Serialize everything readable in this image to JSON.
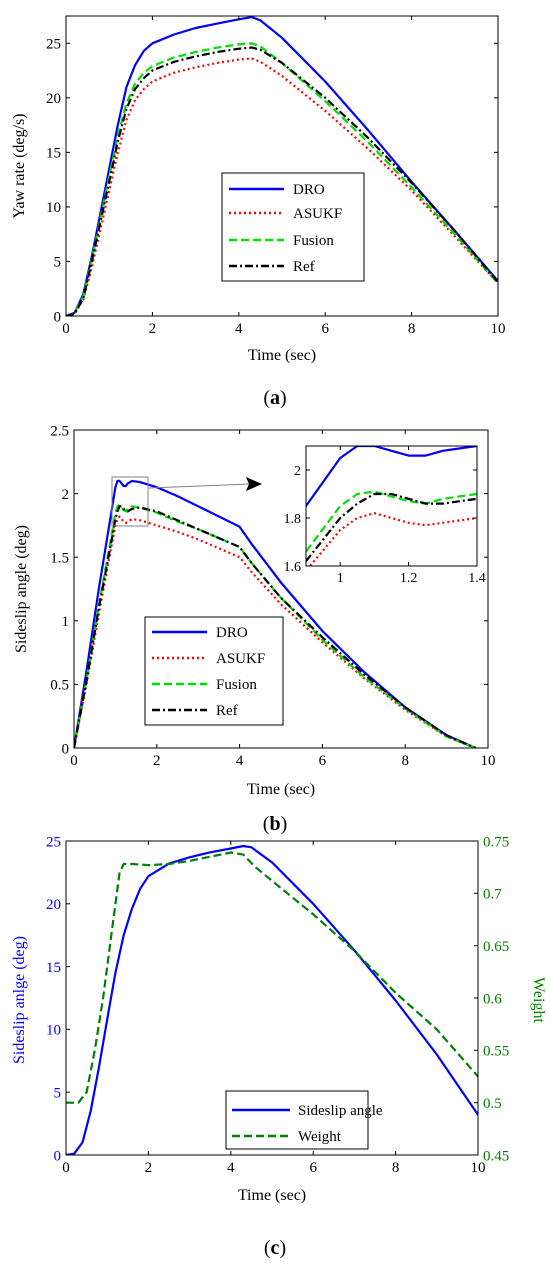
{
  "chart_data": [
    {
      "type": "line",
      "panel_caption": "a",
      "xlabel": "Time (sec)",
      "ylabel": "Yaw rate (deg/s)",
      "xlim": [
        0,
        10
      ],
      "ylim": [
        0,
        27.5
      ],
      "xticks": [
        0,
        2,
        4,
        6,
        8,
        10
      ],
      "yticks": [
        0,
        5,
        10,
        15,
        20,
        25
      ],
      "legend_position": "center",
      "series": [
        {
          "name": "DRO",
          "color": "#0000ff",
          "style": "solid",
          "x": [
            0,
            0.2,
            0.4,
            0.6,
            0.8,
            1.0,
            1.2,
            1.4,
            1.6,
            1.8,
            2.0,
            2.5,
            3.0,
            3.5,
            4.0,
            4.3,
            4.5,
            5,
            6,
            7,
            8,
            9,
            10
          ],
          "y": [
            0,
            0.3,
            2.0,
            5.5,
            9.5,
            13.5,
            17.5,
            21.0,
            23.0,
            24.3,
            25.0,
            25.8,
            26.4,
            26.8,
            27.2,
            27.4,
            27.1,
            25.5,
            21.5,
            17.0,
            12.3,
            7.8,
            3.2
          ]
        },
        {
          "name": "ASUKF",
          "color": "#ff0000",
          "style": "dotted",
          "x": [
            0,
            0.2,
            0.4,
            0.6,
            0.8,
            1.0,
            1.2,
            1.4,
            1.6,
            1.8,
            2.0,
            2.5,
            3.0,
            3.5,
            4.0,
            4.3,
            4.5,
            5,
            6,
            7,
            8,
            9,
            10
          ],
          "y": [
            0,
            0.2,
            1.5,
            4.5,
            8.0,
            11.5,
            15.0,
            18.0,
            19.8,
            20.8,
            21.5,
            22.3,
            22.8,
            23.2,
            23.5,
            23.6,
            23.3,
            22.0,
            18.8,
            15.3,
            11.5,
            7.3,
            3.0
          ]
        },
        {
          "name": "Fusion",
          "color": "#00e000",
          "style": "dashed",
          "x": [
            0,
            0.2,
            0.4,
            0.6,
            0.8,
            1.0,
            1.2,
            1.4,
            1.6,
            1.8,
            2.0,
            2.5,
            3.0,
            3.5,
            4.0,
            4.3,
            4.5,
            5,
            6,
            7,
            8,
            9,
            10
          ],
          "y": [
            0,
            0.25,
            1.8,
            5.2,
            9.0,
            12.8,
            16.5,
            19.5,
            21.3,
            22.3,
            22.9,
            23.7,
            24.2,
            24.6,
            24.9,
            25.0,
            24.7,
            23.2,
            19.7,
            15.9,
            11.8,
            7.5,
            3.0
          ]
        },
        {
          "name": "Ref",
          "color": "#000000",
          "style": "dashdot",
          "x": [
            0,
            0.2,
            0.4,
            0.6,
            0.8,
            1.0,
            1.2,
            1.4,
            1.6,
            1.8,
            2.0,
            2.5,
            3.0,
            3.5,
            4.0,
            4.3,
            4.5,
            5,
            6,
            7,
            8,
            9,
            10
          ],
          "y": [
            0,
            0.2,
            1.6,
            5.0,
            8.7,
            12.3,
            16.0,
            19.0,
            20.8,
            21.8,
            22.5,
            23.3,
            23.8,
            24.2,
            24.5,
            24.6,
            24.4,
            23.2,
            20.0,
            16.3,
            12.2,
            7.8,
            3.1
          ]
        }
      ]
    },
    {
      "type": "line",
      "panel_caption": "b",
      "xlabel": "Time (sec)",
      "ylabel": "Sideslip angle (deg)",
      "xlim": [
        0,
        10
      ],
      "ylim": [
        0,
        2.5
      ],
      "xticks": [
        0,
        2,
        4,
        6,
        8,
        10
      ],
      "yticks": [
        0,
        0.5,
        1,
        1.5,
        2,
        2.5
      ],
      "legend_position": "lower-left",
      "inset": {
        "xlim": [
          0.9,
          1.4
        ],
        "ylim": [
          1.6,
          2.1
        ],
        "xticks": [
          1,
          1.2,
          1.4
        ],
        "yticks": [
          1.6,
          1.8,
          2
        ]
      },
      "series": [
        {
          "name": "DRO",
          "color": "#0000ff",
          "style": "solid",
          "x": [
            0,
            0.3,
            0.6,
            0.9,
            1.0,
            1.05,
            1.1,
            1.15,
            1.2,
            1.25,
            1.3,
            1.35,
            1.4,
            1.6,
            2.0,
            2.5,
            3.0,
            3.5,
            4.0,
            4.3,
            5,
            6,
            7,
            8,
            9,
            9.7
          ],
          "y": [
            0,
            0.6,
            1.25,
            1.85,
            2.05,
            2.1,
            2.1,
            2.08,
            2.06,
            2.06,
            2.08,
            2.09,
            2.1,
            2.09,
            2.05,
            1.98,
            1.9,
            1.82,
            1.74,
            1.6,
            1.3,
            0.92,
            0.6,
            0.32,
            0.1,
            0
          ]
        },
        {
          "name": "ASUKF",
          "color": "#ff0000",
          "style": "dotted",
          "x": [
            0,
            0.3,
            0.6,
            0.9,
            1.0,
            1.05,
            1.1,
            1.15,
            1.2,
            1.25,
            1.3,
            1.35,
            1.4,
            1.6,
            2.0,
            2.5,
            3.0,
            3.5,
            4.0,
            4.3,
            5,
            6,
            7,
            8,
            9,
            9.7
          ],
          "y": [
            0,
            0.5,
            1.05,
            1.58,
            1.75,
            1.8,
            1.82,
            1.8,
            1.78,
            1.77,
            1.78,
            1.79,
            1.8,
            1.79,
            1.75,
            1.7,
            1.64,
            1.57,
            1.5,
            1.38,
            1.13,
            0.83,
            0.55,
            0.3,
            0.09,
            0
          ]
        },
        {
          "name": "Fusion",
          "color": "#00e000",
          "style": "dashed",
          "x": [
            0,
            0.3,
            0.6,
            0.9,
            1.0,
            1.05,
            1.1,
            1.15,
            1.2,
            1.25,
            1.3,
            1.35,
            1.4,
            1.6,
            2.0,
            2.5,
            3.0,
            3.5,
            4.0,
            4.3,
            5,
            6,
            7,
            8,
            9,
            9.7
          ],
          "y": [
            0,
            0.53,
            1.12,
            1.66,
            1.85,
            1.9,
            1.91,
            1.89,
            1.87,
            1.86,
            1.88,
            1.89,
            1.9,
            1.89,
            1.85,
            1.78,
            1.72,
            1.65,
            1.58,
            1.45,
            1.18,
            0.85,
            0.56,
            0.31,
            0.09,
            0
          ]
        },
        {
          "name": "Ref",
          "color": "#000000",
          "style": "dashdot",
          "x": [
            0,
            0.3,
            0.6,
            0.9,
            1.0,
            1.05,
            1.1,
            1.15,
            1.2,
            1.25,
            1.3,
            1.35,
            1.4,
            1.6,
            2.0,
            2.5,
            3.0,
            3.5,
            4.0,
            4.3,
            5,
            6,
            7,
            8,
            9,
            9.7
          ],
          "y": [
            0,
            0.52,
            1.1,
            1.62,
            1.8,
            1.86,
            1.9,
            1.9,
            1.88,
            1.86,
            1.86,
            1.87,
            1.88,
            1.89,
            1.86,
            1.79,
            1.72,
            1.65,
            1.58,
            1.45,
            1.18,
            0.87,
            0.58,
            0.32,
            0.1,
            0
          ]
        }
      ]
    },
    {
      "type": "line",
      "panel_caption": "c",
      "xlabel": "Time (sec)",
      "ylabel": "Sideslip anlge (deg)",
      "ylabel_right": "Weight",
      "xlim": [
        0,
        10
      ],
      "ylim": [
        0,
        25
      ],
      "ylim_right": [
        0.45,
        0.75
      ],
      "xticks": [
        0,
        2,
        4,
        6,
        8,
        10
      ],
      "yticks": [
        0,
        5,
        10,
        15,
        20,
        25
      ],
      "yticks_right": [
        0.45,
        0.5,
        0.55,
        0.6,
        0.65,
        0.7,
        0.75
      ],
      "left_axis_color": "#0000ff",
      "right_axis_color": "#008000",
      "legend_position": "lower-right",
      "series": [
        {
          "name": "Sideslip angle",
          "axis": "left",
          "color": "#0000ff",
          "style": "solid",
          "x": [
            0,
            0.2,
            0.4,
            0.6,
            0.8,
            1.0,
            1.2,
            1.4,
            1.6,
            1.8,
            2.0,
            2.5,
            3.0,
            3.5,
            4.0,
            4.3,
            4.5,
            5,
            6,
            7,
            8,
            9,
            10
          ],
          "y": [
            0,
            0.1,
            1.0,
            3.5,
            7.0,
            10.8,
            14.5,
            17.5,
            19.6,
            21.2,
            22.2,
            23.2,
            23.7,
            24.1,
            24.4,
            24.6,
            24.5,
            23.3,
            20.0,
            16.3,
            12.3,
            8.0,
            3.2
          ]
        },
        {
          "name": "Weight",
          "axis": "right",
          "color": "#008000",
          "style": "dashed",
          "x": [
            0,
            0.3,
            0.5,
            0.7,
            0.9,
            1.1,
            1.3,
            1.4,
            1.6,
            2.0,
            2.5,
            3.0,
            3.5,
            4.0,
            4.3,
            4.6,
            5,
            6,
            7,
            8,
            9,
            10
          ],
          "y": [
            0.5,
            0.5,
            0.51,
            0.55,
            0.6,
            0.66,
            0.72,
            0.728,
            0.728,
            0.727,
            0.728,
            0.731,
            0.735,
            0.739,
            0.737,
            0.725,
            0.712,
            0.68,
            0.645,
            0.605,
            0.57,
            0.525
          ]
        }
      ]
    }
  ]
}
